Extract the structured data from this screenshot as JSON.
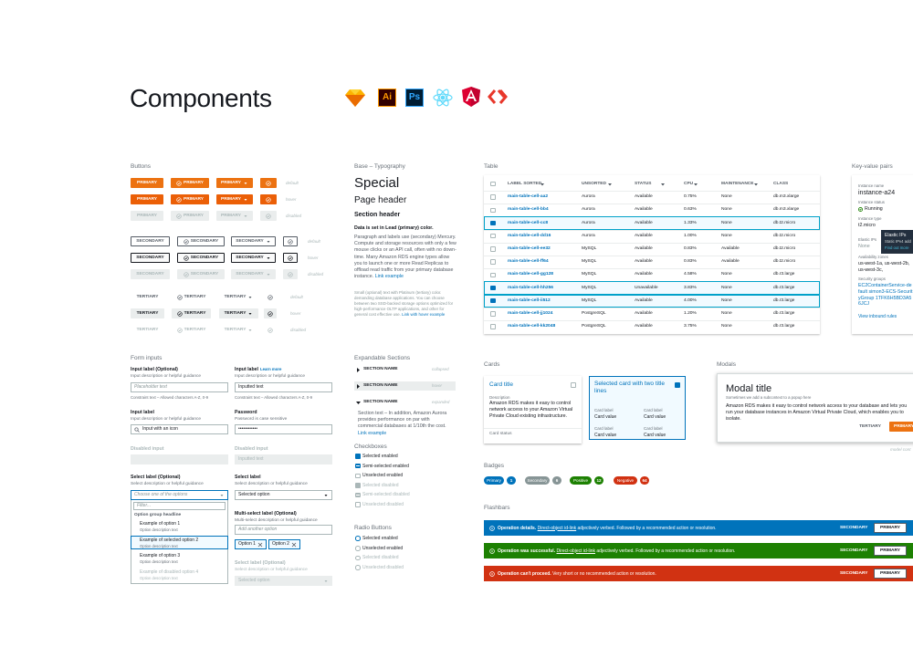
{
  "header": {
    "title": "Components",
    "icons": [
      "Ai",
      "Ps"
    ]
  },
  "buttons": {
    "title": "Buttons",
    "states": [
      "default",
      "hover",
      "disabled"
    ],
    "primary": "PRIMARY",
    "secondary": "SECONDARY",
    "tertiary": "TERTIARY"
  },
  "typography": {
    "title": "Base – Typography",
    "special": "Special",
    "page_header": "Page header",
    "section_header": "Section header",
    "lead": "Data is set in Lead (primary) color.",
    "paragraph": "Paragraph and labels use (secondary) Mercury. Compute and storage resources with only a few mouse clicks or an API call, often with no down-time. Many Amazon RDS engine types allow you to launch one or more Read Replicas to offload read traffic from your primary database instance.",
    "paragraph_link": "Link example",
    "small": "Small (optional) text with Platinum (tertiary) color. demanding database applications. You can choose between two SSD-backed storage options optimized for high-performance OLTP applications, and other for general cost effective use.",
    "small_link": "Link with hover example"
  },
  "table": {
    "title": "Table",
    "columns": [
      "LABEL SORTED",
      "UNSORTED",
      "STATUS",
      "CPU",
      "MAINTENANCE",
      "CLASS"
    ],
    "rows": [
      {
        "cells": [
          "main-table-cell-aa2",
          "Aurora",
          "Available",
          "0.75%",
          "None",
          "db.m3.xlarge"
        ],
        "selected": false
      },
      {
        "cells": [
          "main-table-cell-bb4",
          "Aurora",
          "Available",
          "0.63%",
          "None",
          "db.m3.xlarge"
        ],
        "selected": false
      },
      {
        "cells": [
          "main-table-cell-cc8",
          "Aurora",
          "Available",
          "1.33%",
          "None",
          "db.t2.micro"
        ],
        "selected": true
      },
      {
        "cells": [
          "main-table-cell-dd16",
          "Aurora",
          "Available",
          "1.00%",
          "None",
          "db.t2.micro"
        ],
        "selected": false
      },
      {
        "cells": [
          "main-table-cell-ee32",
          "MySQL",
          "Available",
          "0.83%",
          "Available",
          "db.t2.micro"
        ],
        "selected": false
      },
      {
        "cells": [
          "main-table-cell-ff64",
          "MySQL",
          "Available",
          "0.83%",
          "Available",
          "db.t2.micro"
        ],
        "selected": false
      },
      {
        "cells": [
          "main-table-cell-gg128",
          "MySQL",
          "Available",
          "4.58%",
          "None",
          "db.r3.large"
        ],
        "selected": false
      },
      {
        "cells": [
          "main-table-cell-hh256",
          "MySQL",
          "Unavailable",
          "3.83%",
          "None",
          "db.r3.large"
        ],
        "selected": true
      },
      {
        "cells": [
          "main-table-cell-ii512",
          "MySQL",
          "Available",
          "4.00%",
          "None",
          "db.r3.large"
        ],
        "selected": true
      },
      {
        "cells": [
          "main-table-cell-jj1024",
          "PostgreSQL",
          "Available",
          "1.20%",
          "None",
          "db.r3.large"
        ],
        "selected": false
      },
      {
        "cells": [
          "main-table-cell-kk2048",
          "PostgreSQL",
          "Available",
          "3.75%",
          "None",
          "db.r3.large"
        ],
        "selected": false
      }
    ]
  },
  "key_value": {
    "title": "Key-value pairs",
    "pairs": [
      {
        "key": "Instance name",
        "value": "instance-a24"
      },
      {
        "key": "Instance status",
        "value": "Running"
      },
      {
        "key": "Instance type",
        "value": "t2.micro"
      },
      {
        "key": "Elastic IPs",
        "value": "None"
      },
      {
        "key": "Availability zones",
        "value": "us-west-1a, us-west-2b, us-west-3c,"
      },
      {
        "key": "Security groups",
        "value": "EC2ContainerService-default simon3-ECS-SecurityGroup 1TFK6H5BD3A56JCJ"
      }
    ],
    "link": "View inbound rules",
    "tooltip": {
      "title": "Elastic IPs",
      "text": "Static IPv4 add",
      "link": "Find out more"
    }
  },
  "form": {
    "title": "Form inputs",
    "inputs": [
      {
        "label": "Input label (Optional)",
        "description": "Input description or helpful guidance",
        "placeholder": "Placeholder text",
        "constraint": "Constraint text – Allowed characters A-Z, 0-9"
      },
      {
        "label": "Input label",
        "link": "Learn more",
        "description": "Input description or helpful guidance",
        "value": "Inputted text",
        "constraint": "Constraint text – Allowed characters A-Z, 0-9"
      },
      {
        "label": "Input label",
        "description": "Input description or helpful guidance",
        "value": "Input with an icon"
      },
      {
        "label": "Password",
        "description": "Password is case sensitive",
        "value": "••••••••••••"
      },
      {
        "label": "Disabled input"
      },
      {
        "label": "Disabled input",
        "value": "Inputted text"
      }
    ],
    "selects": [
      {
        "label": "Select label (Optional)",
        "description": "Select description or helpful guidance",
        "placeholder": "Choose one of the options",
        "filter": "Filter...",
        "group": "Option group headline",
        "options": [
          {
            "label": "Example of option 1",
            "description": "Option description text"
          },
          {
            "label": "Example of selected option 2",
            "description": "Option description text"
          },
          {
            "label": "Example of option 3",
            "description": "Option description text"
          },
          {
            "label": "Example of disabled option 4",
            "description": "Option description text"
          }
        ]
      },
      {
        "label": "Select label",
        "description": "Select description or helpful guidance",
        "value": "Selected option"
      },
      {
        "label": "Multi-select label (Optional)",
        "description": "Multi-select description or helpful guidance",
        "placeholder": "Add another option",
        "tokens": [
          "Option 1",
          "Option 2"
        ]
      },
      {
        "label": "Select label (Optional)",
        "description": "Select description or helpful guidance",
        "value": "Selected option"
      }
    ]
  },
  "expandable": {
    "title": "Expandable Sections",
    "sections": [
      {
        "title": "SECTION NAME",
        "state": "collapsed"
      },
      {
        "title": "SECTION NAME",
        "state": "hover"
      },
      {
        "title": "SECTION NAME",
        "state": "expanded",
        "content": "Section text – In addition, Amazon Aurora provides performance on par with commercial databases at 1/10th the cost.",
        "link": "Link example"
      }
    ]
  },
  "checkboxes": {
    "title": "Checkboxes",
    "items": [
      "Selected enabled",
      "Semi-selected enabled",
      "Unselected enabled",
      "Selected disabled",
      "Semi-selected disabled",
      "Unselected disabled"
    ]
  },
  "radios": {
    "title": "Radio Buttons",
    "items": [
      "Selected enabled",
      "Unselected enabled",
      "Selected disabled",
      "Unselected disabled"
    ]
  },
  "cards": {
    "title": "Cards",
    "card": {
      "title": "Card title",
      "label": "Description",
      "text": "Amazon RDS makes it easy to control network access to your Amazon Virtual Private Cloud existing infrastructure.",
      "footer": "Card status"
    },
    "selected_card": {
      "title": "Selected card with two title lines",
      "fields": [
        {
          "label": "Card label",
          "value": "Card value"
        },
        {
          "label": "Card label",
          "value": "Card value"
        },
        {
          "label": "Card label",
          "value": "Card value"
        },
        {
          "label": "Card label",
          "value": "Card value"
        }
      ]
    }
  },
  "modals": {
    "title": "Modals",
    "modal": {
      "title": "Modal title",
      "subtitle": "Sometimes we add a subcontext to a popup here",
      "text": "Amazon RDS makes it easy to control network access to your database and lets you run your database instances in Amazon Virtual Private Cloud, which enables you to isolate.",
      "tertiary": "TERTIARY",
      "primary": "PRIMARY"
    },
    "caption": "model cont"
  },
  "badges": {
    "title": "Badges",
    "items": [
      {
        "label": "Primary",
        "count": 1,
        "color": "#0073bb"
      },
      {
        "label": "Secondary",
        "count": 6,
        "color": "#879596"
      },
      {
        "label": "Positive",
        "count": 12,
        "color": "#1d8102"
      },
      {
        "label": "Negative",
        "count": 64,
        "color": "#d13212"
      }
    ]
  },
  "flashbars": {
    "title": "Flashbars",
    "items": [
      {
        "bold": "Operation details.",
        "link": "Direct-object id-link",
        "text": "adjectively verbed. Followed by a recommended action or resolution.",
        "secondary": "SECONDARY",
        "primary": "PRIMARY",
        "color": "#0073bb"
      },
      {
        "bold": "Operation was successful.",
        "link": "Direct-object id-link",
        "text": "adjectively verbed. Followed by a recommended action or resolution.",
        "secondary": "SECONDARY",
        "primary": "PRIMARY",
        "color": "#1d8102"
      },
      {
        "bold": "Operation can't proceed.",
        "text": "Very short or no recommended action or resolution.",
        "secondary": "SECONDARY",
        "primary": "PRIMARY",
        "color": "#d13212"
      }
    ]
  }
}
